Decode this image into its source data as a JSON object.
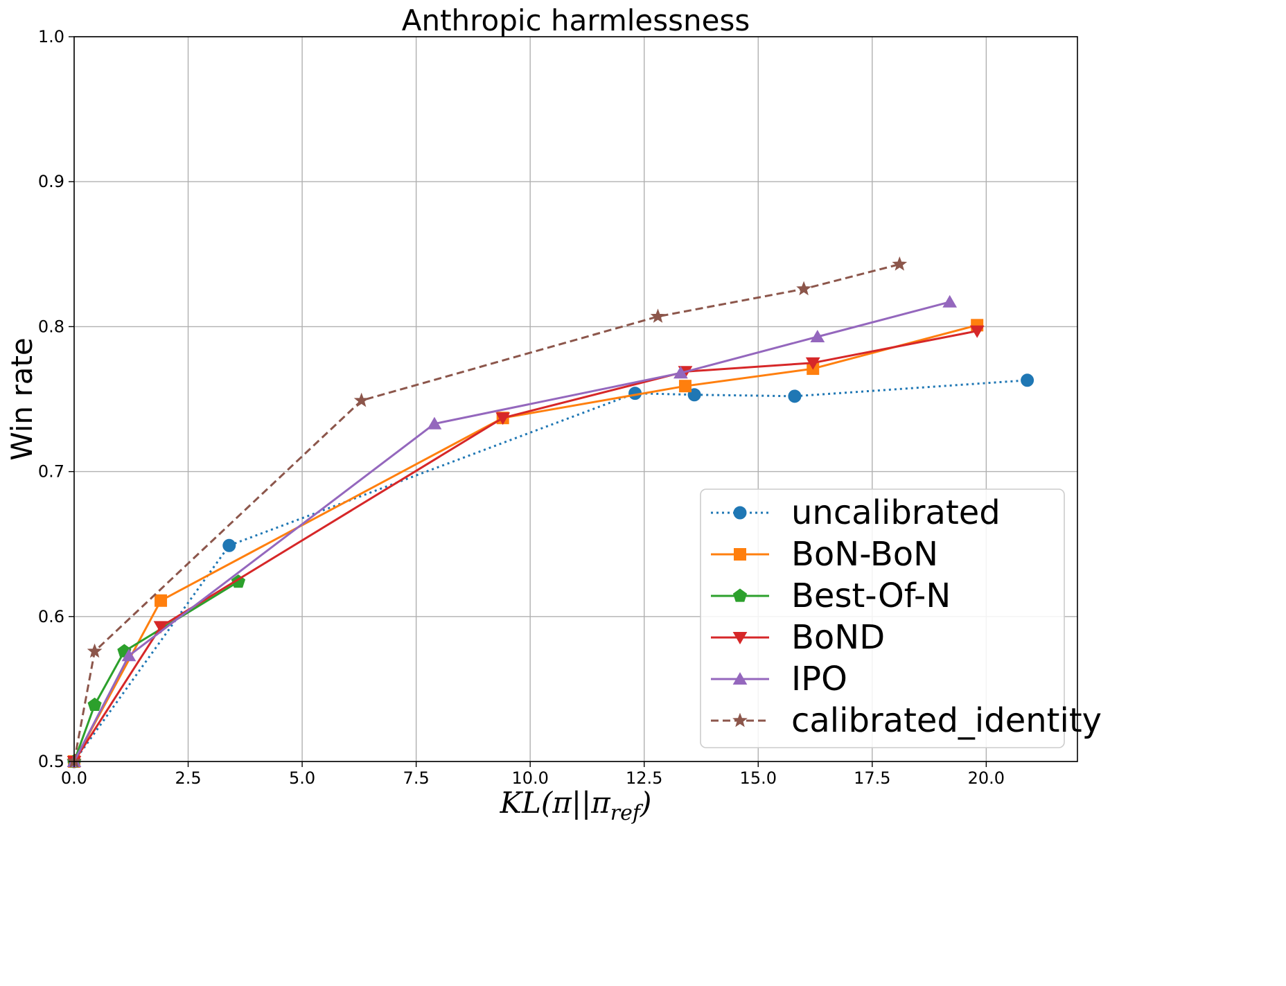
{
  "chart_data": {
    "type": "line",
    "title": "Anthropic harmlessness",
    "xlabel": "KL(π||π_ref)",
    "xlabel_parts": {
      "main": "KL(π||π",
      "sub": "ref",
      "close": ")"
    },
    "ylabel": "Win rate",
    "xlim": [
      0.0,
      22.0
    ],
    "ylim": [
      0.5,
      1.0
    ],
    "xticks": [
      "0.0",
      "2.5",
      "5.0",
      "7.5",
      "10.0",
      "12.5",
      "15.0",
      "17.5",
      "20.0"
    ],
    "xtick_values": [
      0.0,
      2.5,
      5.0,
      7.5,
      10.0,
      12.5,
      15.0,
      17.5,
      20.0
    ],
    "yticks": [
      "0.5",
      "0.6",
      "0.7",
      "0.8",
      "0.9",
      "1.0"
    ],
    "ytick_values": [
      0.5,
      0.6,
      0.7,
      0.8,
      0.9,
      1.0
    ],
    "grid": true,
    "legend_position": "lower-right",
    "series": [
      {
        "name": "uncalibrated",
        "color": "#1f77b4",
        "marker": "circle",
        "linestyle": "dotted",
        "x": [
          0.0,
          3.4,
          12.3,
          13.6,
          15.8,
          20.9
        ],
        "y": [
          0.5,
          0.649,
          0.754,
          0.753,
          0.752,
          0.763
        ]
      },
      {
        "name": "BoN-BoN",
        "color": "#ff7f0e",
        "marker": "square",
        "linestyle": "solid",
        "x": [
          0.0,
          1.9,
          9.4,
          13.4,
          16.2,
          19.8
        ],
        "y": [
          0.5,
          0.611,
          0.737,
          0.759,
          0.771,
          0.801
        ]
      },
      {
        "name": "Best-Of-N",
        "color": "#2ca02c",
        "marker": "pentagon",
        "linestyle": "solid",
        "x": [
          0.0,
          0.45,
          1.1,
          3.6
        ],
        "y": [
          0.5,
          0.539,
          0.576,
          0.624
        ]
      },
      {
        "name": "BoND",
        "color": "#d62728",
        "marker": "triangle-down",
        "linestyle": "solid",
        "x": [
          0.0,
          1.9,
          9.4,
          13.4,
          16.2,
          19.8
        ],
        "y": [
          0.5,
          0.593,
          0.737,
          0.769,
          0.775,
          0.797
        ]
      },
      {
        "name": "IPO",
        "color": "#9467bd",
        "marker": "triangle-up",
        "linestyle": "solid",
        "x": [
          0.0,
          1.2,
          7.9,
          13.3,
          16.3,
          19.2
        ],
        "y": [
          0.5,
          0.573,
          0.733,
          0.768,
          0.793,
          0.817
        ]
      },
      {
        "name": "calibrated_identity",
        "color": "#8c564b",
        "marker": "star",
        "linestyle": "dashed",
        "x": [
          0.0,
          0.45,
          6.3,
          12.8,
          16.0,
          18.1
        ],
        "y": [
          0.5,
          0.576,
          0.749,
          0.807,
          0.826,
          0.843
        ]
      }
    ]
  }
}
